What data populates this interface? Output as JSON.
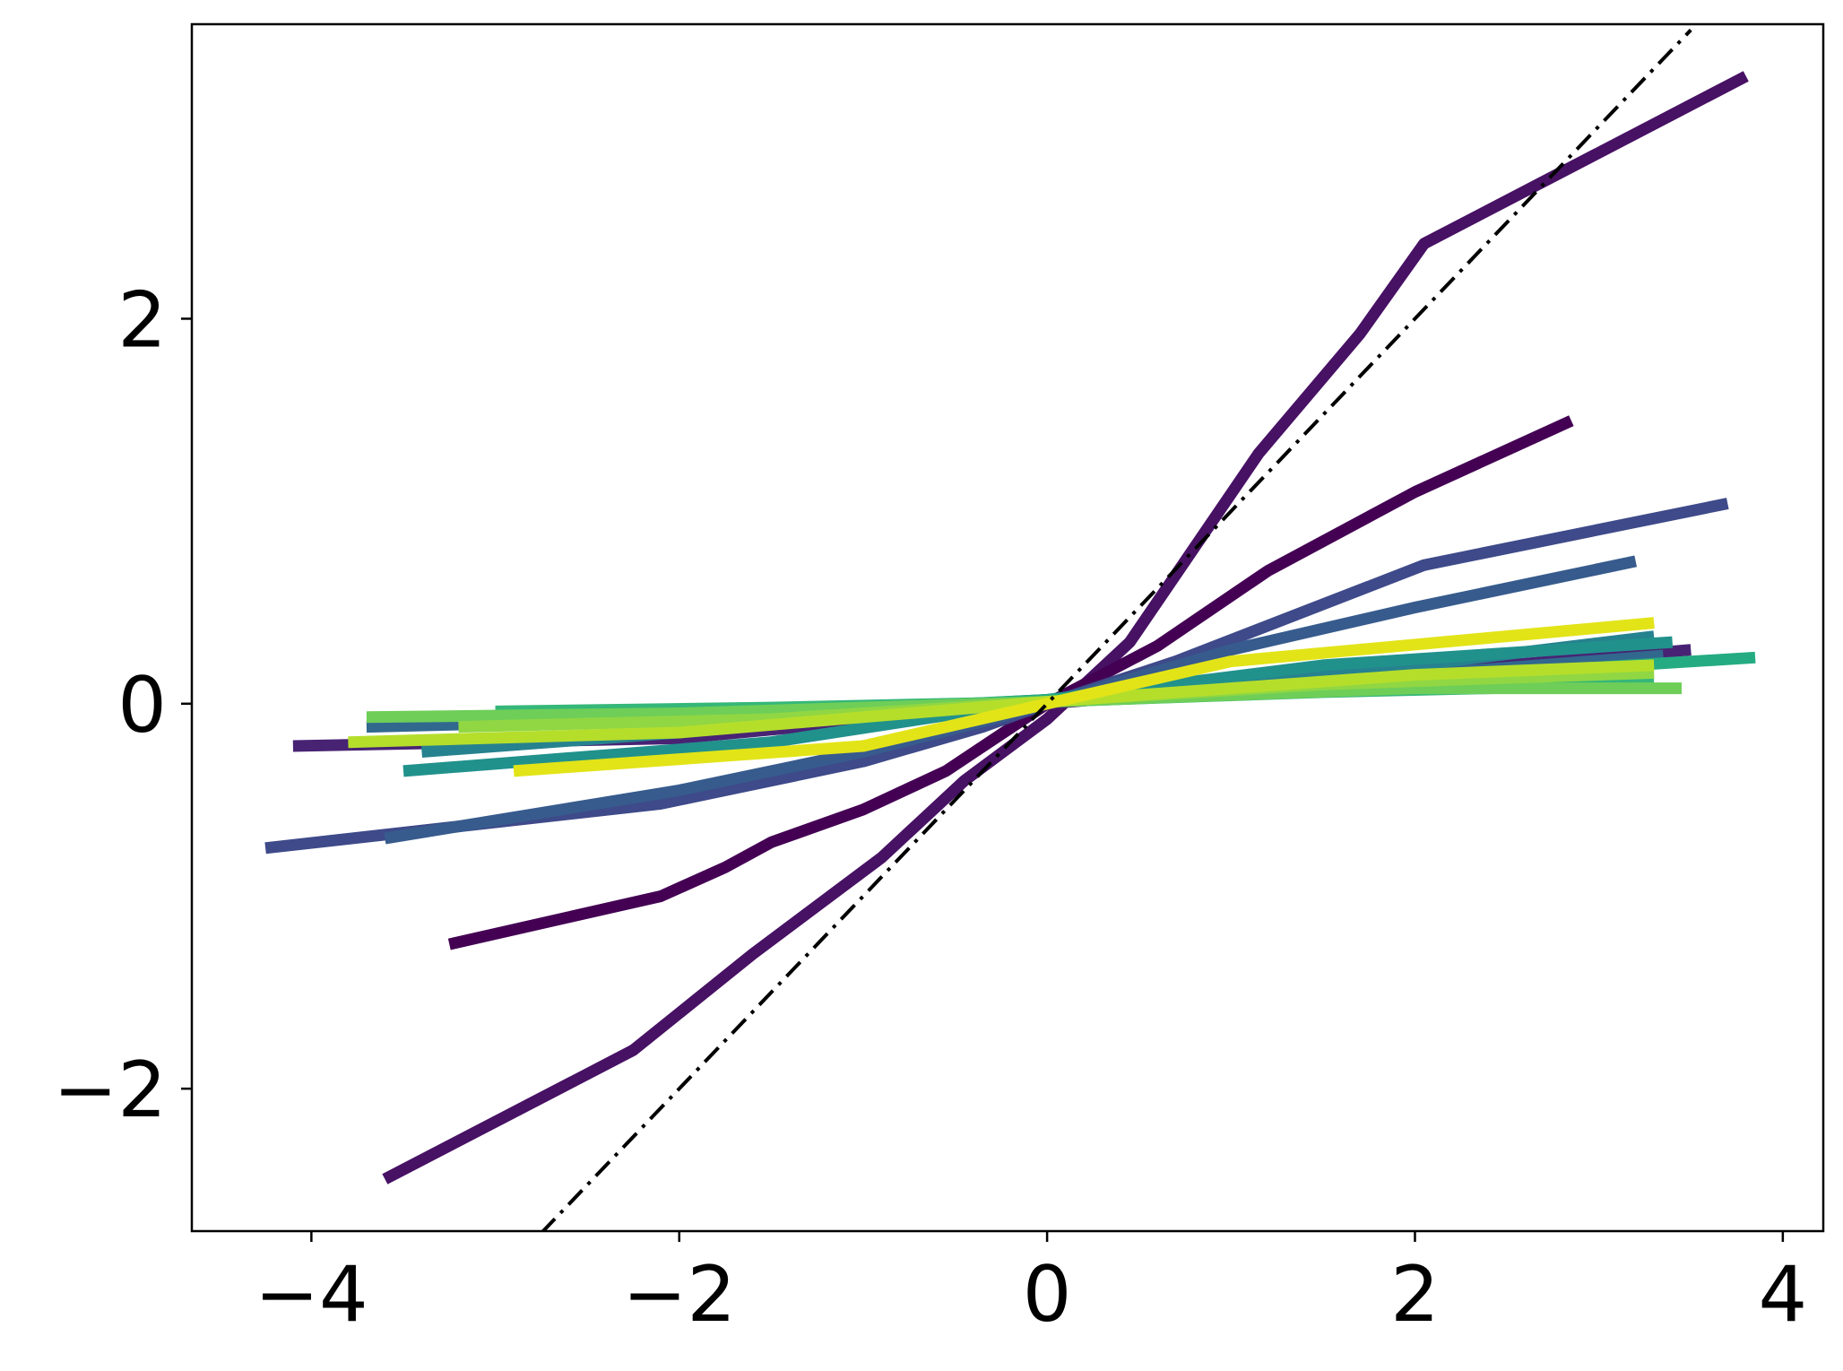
{
  "chart_data": {
    "type": "line",
    "title": "",
    "xlabel": "",
    "ylabel": "",
    "xlim": [
      -4.65,
      4.22
    ],
    "ylim": [
      -2.74,
      3.53
    ],
    "grid": false,
    "legend": "none",
    "x_ticks": [
      {
        "value": -4,
        "label": "−4"
      },
      {
        "value": -2,
        "label": "−2"
      },
      {
        "value": 0,
        "label": "0"
      },
      {
        "value": 2,
        "label": "2"
      },
      {
        "value": 4,
        "label": "4"
      }
    ],
    "y_ticks": [
      {
        "value": -2,
        "label": "−2"
      },
      {
        "value": 0,
        "label": "0"
      },
      {
        "value": 2,
        "label": "2"
      }
    ],
    "reference_line": {
      "style": "dash-dot",
      "color": "#000000",
      "x": [
        -2.75,
        3.5
      ],
      "y": [
        -2.75,
        3.5
      ]
    },
    "series": [
      {
        "color": "#471164",
        "x": [
          -3.6,
          -2.25,
          -1.6,
          -0.9,
          -0.45,
          0,
          0.45,
          1.15,
          1.7,
          2.05,
          3.8
        ],
        "y": [
          -2.47,
          -1.8,
          -1.3,
          -0.8,
          -0.4,
          -0.08,
          0.32,
          1.3,
          1.92,
          2.39,
          3.26
        ]
      },
      {
        "color": "#440154",
        "x": [
          -3.25,
          -2.1,
          -1.75,
          -1.5,
          -1.0,
          -0.55,
          0,
          0.6,
          1.2,
          2.0,
          2.85
        ],
        "y": [
          -1.25,
          -1.0,
          -0.85,
          -0.72,
          -0.55,
          -0.35,
          0,
          0.3,
          0.69,
          1.1,
          1.47
        ]
      },
      {
        "color": "#482374",
        "x": [
          -4.1,
          -2.0,
          0,
          1.0,
          3.5
        ],
        "y": [
          -0.22,
          -0.18,
          0,
          0.08,
          0.28
        ]
      },
      {
        "color": "#3e4a89",
        "x": [
          -4.25,
          -2.1,
          -1.0,
          -0.35,
          0,
          0.7,
          2.05,
          3.7
        ],
        "y": [
          -0.75,
          -0.52,
          -0.3,
          -0.12,
          0.0,
          0.22,
          0.72,
          1.04
        ]
      },
      {
        "color": "#375b8d",
        "x": [
          -3.6,
          -2.0,
          -1.0,
          -0.3,
          0,
          1.0,
          2.0,
          3.2
        ],
        "y": [
          -0.7,
          -0.45,
          -0.25,
          -0.08,
          0.0,
          0.28,
          0.5,
          0.74
        ]
      },
      {
        "color": "#31688e",
        "x": [
          -3.7,
          -2.0,
          0,
          2.0,
          3.35
        ],
        "y": [
          -0.12,
          -0.08,
          0.02,
          0.15,
          0.25
        ]
      },
      {
        "color": "#26828e",
        "x": [
          -3.4,
          -2.0,
          0,
          2.0,
          3.3
        ],
        "y": [
          -0.25,
          -0.15,
          0.02,
          0.2,
          0.35
        ]
      },
      {
        "color": "#21918c",
        "x": [
          -3.5,
          -1.5,
          0,
          1.5,
          3.4
        ],
        "y": [
          -0.35,
          -0.2,
          0.02,
          0.2,
          0.32
        ]
      },
      {
        "color": "#25ab82",
        "x": [
          -3.0,
          -1.5,
          0,
          1.5,
          3.85
        ],
        "y": [
          -0.08,
          -0.05,
          0.02,
          0.1,
          0.24
        ]
      },
      {
        "color": "#35b779",
        "x": [
          -3.0,
          -1.5,
          0,
          1.5,
          3.3
        ],
        "y": [
          -0.04,
          -0.02,
          0.01,
          0.06,
          0.1
        ]
      },
      {
        "color": "#6ece58",
        "x": [
          -3.7,
          -2.0,
          0,
          2.0,
          3.45
        ],
        "y": [
          -0.07,
          -0.05,
          0.01,
          0.08,
          0.08
        ]
      },
      {
        "color": "#90d743",
        "x": [
          -3.2,
          -1.5,
          0,
          1.5,
          3.3
        ],
        "y": [
          -0.12,
          -0.08,
          0.01,
          0.1,
          0.16
        ]
      },
      {
        "color": "#b5de2b",
        "x": [
          -3.8,
          -2.0,
          0,
          2.0,
          3.3
        ],
        "y": [
          -0.2,
          -0.15,
          0.01,
          0.15,
          0.2
        ]
      },
      {
        "color": "#e2e418",
        "x": [
          -2.9,
          -1.0,
          0,
          1.0,
          3.3
        ],
        "y": [
          -0.35,
          -0.22,
          0.0,
          0.22,
          0.42
        ]
      }
    ]
  }
}
